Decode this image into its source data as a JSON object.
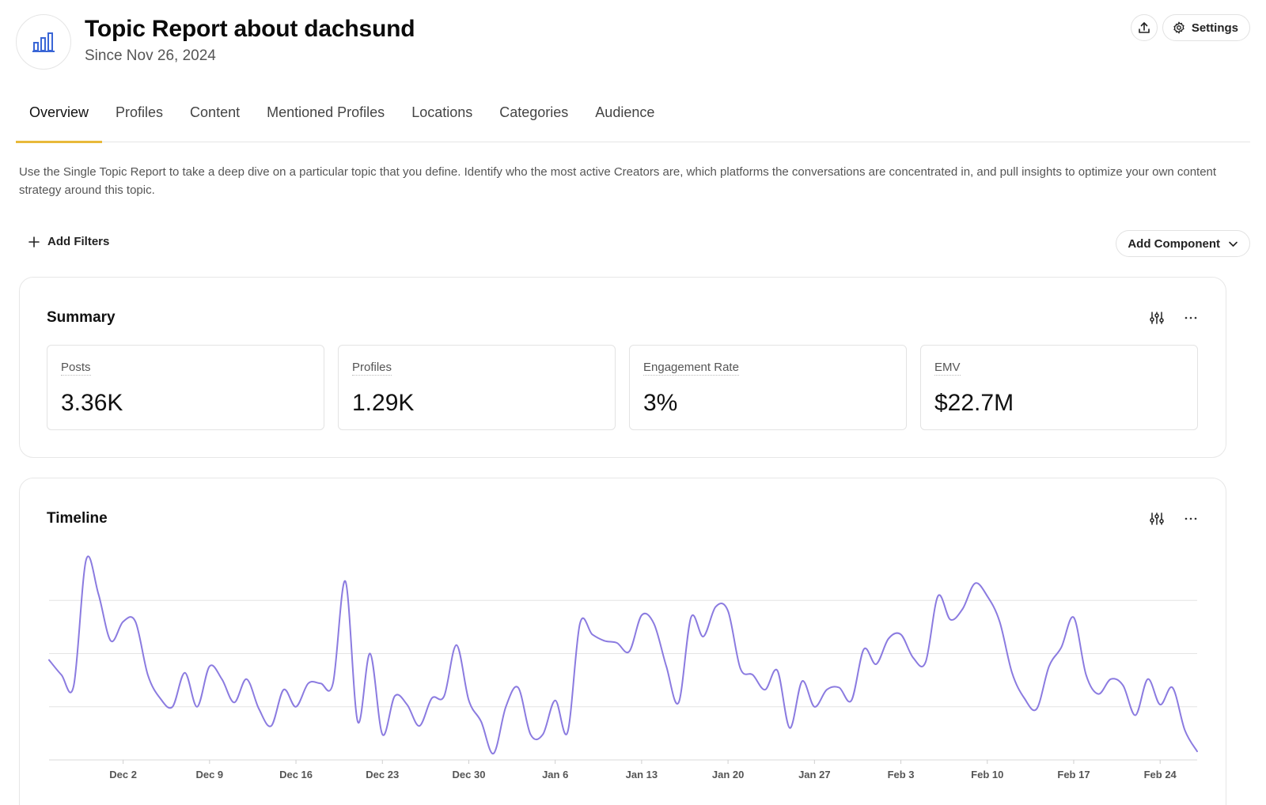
{
  "header": {
    "icon": "bar-chart-icon",
    "title": "Topic Report about dachsund",
    "subtitle": "Since Nov 26, 2024",
    "share_icon": "upload-icon",
    "settings_icon": "gear-icon",
    "settings_label": "Settings"
  },
  "tabs": [
    {
      "label": "Overview",
      "active": true
    },
    {
      "label": "Profiles"
    },
    {
      "label": "Content"
    },
    {
      "label": "Mentioned Profiles"
    },
    {
      "label": "Locations"
    },
    {
      "label": "Categories"
    },
    {
      "label": "Audience"
    }
  ],
  "description": "Use the Single Topic Report to take a deep dive on a particular topic that you define. Identify who the most active Creators are, which platforms the conversations are concentrated in, and pull insights to optimize your own content strategy around this topic.",
  "toolbar": {
    "add_filters_label": "Add Filters",
    "add_component_label": "Add Component"
  },
  "summary": {
    "title": "Summary",
    "stats": [
      {
        "label": "Posts",
        "value": "3.36K"
      },
      {
        "label": "Profiles",
        "value": "1.29K"
      },
      {
        "label": "Engagement Rate",
        "value": "3%"
      },
      {
        "label": "EMV",
        "value": "$22.7M"
      }
    ]
  },
  "timeline": {
    "title": "Timeline"
  },
  "colors": {
    "accent_tab": "#e8b93a",
    "line": "#8b7be0",
    "logo_icon": "#3a66d6"
  },
  "chart_data": {
    "type": "line",
    "x_start": "Nov 26, 2024",
    "x_end": "Feb 25, 2025",
    "xticks": [
      "Dec 2",
      "Dec 9",
      "Dec 16",
      "Dec 23",
      "Dec 30",
      "Jan 6",
      "Jan 13",
      "Jan 20",
      "Jan 27",
      "Feb 3",
      "Feb 10",
      "Feb 17",
      "Feb 24"
    ],
    "grid": true,
    "ylim": [
      0,
      100
    ],
    "series": [
      {
        "values": [
          47,
          40,
          35,
          94,
          78,
          56,
          65,
          65,
          40,
          29,
          25,
          41,
          25,
          44,
          38,
          27,
          38,
          24,
          16,
          33,
          25,
          36,
          36,
          36,
          84,
          18,
          50,
          12,
          30,
          26,
          16,
          29,
          30,
          54,
          28,
          18,
          3,
          25,
          34,
          12,
          12,
          28,
          13,
          64,
          59,
          56,
          55,
          51,
          68,
          64,
          44,
          27,
          67,
          58,
          72,
          70,
          43,
          40,
          33,
          42,
          15,
          37,
          25,
          33,
          34,
          28,
          52,
          45,
          57,
          59,
          48,
          46,
          77,
          66,
          71,
          83,
          77,
          65,
          41,
          29,
          24,
          44,
          53,
          67,
          40,
          31,
          38,
          35,
          21,
          38,
          26,
          34,
          14,
          4
        ]
      }
    ]
  }
}
